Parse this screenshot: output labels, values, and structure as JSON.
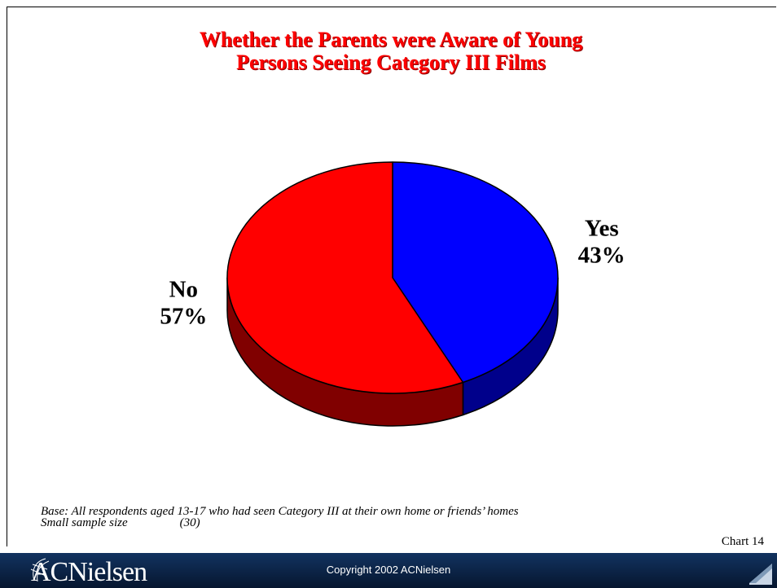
{
  "title": {
    "line1": "Whether the Parents were Aware of Young",
    "line2": "Persons Seeing Category III Films"
  },
  "chart_data": {
    "type": "pie",
    "title": "Whether the Parents were Aware of Young Persons Seeing Category III Films",
    "slices": [
      {
        "label": "Yes",
        "value": 43,
        "display": "43%",
        "color": "#0000ff",
        "side_color": "#00008b"
      },
      {
        "label": "No",
        "value": 57,
        "display": "57%",
        "color": "#ff0000",
        "side_color": "#800000"
      }
    ],
    "style": "3d"
  },
  "footnote": {
    "line1": "Base: All respondents aged 13-17 who had seen Category III at their own home or friends’ homes",
    "line2": "Small sample size",
    "count": "(30)"
  },
  "chart_number": "Chart 14",
  "footer": {
    "brand": "ACNielsen",
    "copyright": "Copyright 2002 ACNielsen"
  }
}
